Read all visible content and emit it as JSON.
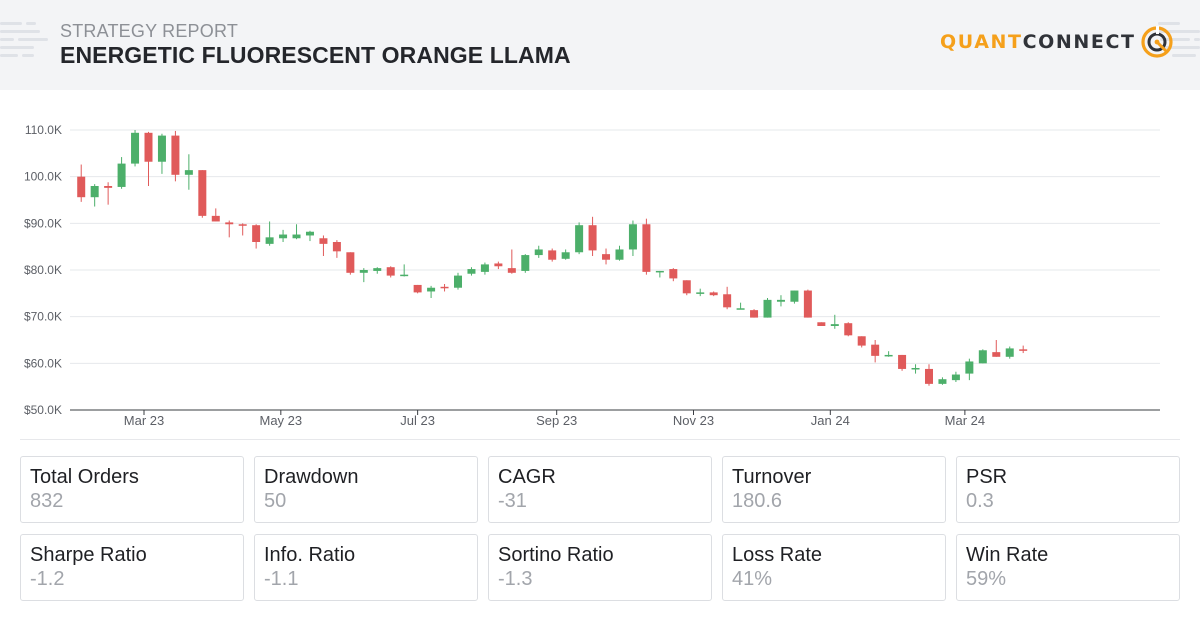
{
  "header": {
    "subtitle": "STRATEGY REPORT",
    "title": "ENERGETIC FLUORESCENT ORANGE LLAMA",
    "logo_quant": "QUANT",
    "logo_connect": "CONNECT",
    "logo_icon": "quantconnect-logo-icon"
  },
  "colors": {
    "up": "#4caf6a",
    "down": "#e05a5a",
    "accent": "#f5a01b",
    "grid": "#e6e8eb"
  },
  "chart_data": {
    "type": "candlestick",
    "title": "",
    "xlabel": "",
    "ylabel": "",
    "ylim": [
      50000,
      110000
    ],
    "y_ticks": [
      {
        "value": 50000,
        "label": "$50.0K"
      },
      {
        "value": 60000,
        "label": "$60.0K"
      },
      {
        "value": 70000,
        "label": "$70.0K"
      },
      {
        "value": 80000,
        "label": "$80.0K"
      },
      {
        "value": 90000,
        "label": "$90.0K"
      },
      {
        "value": 100000,
        "label": "100.0K"
      },
      {
        "value": 110000,
        "label": "110.0K"
      }
    ],
    "x_range": [
      "2023-01-27",
      "2024-05-27"
    ],
    "x_ticks": [
      {
        "date": "2023-03-01",
        "label": "Mar 23"
      },
      {
        "date": "2023-05-01",
        "label": "May 23"
      },
      {
        "date": "2023-07-01",
        "label": "Jul 23"
      },
      {
        "date": "2023-09-01",
        "label": "Sep 23"
      },
      {
        "date": "2023-11-01",
        "label": "Nov 23"
      },
      {
        "date": "2024-01-01",
        "label": "Jan 24"
      },
      {
        "date": "2024-03-01",
        "label": "Mar 24"
      }
    ],
    "grid": true,
    "legend": "none",
    "candles": [
      {
        "date": "2023-02-01",
        "open": 100000,
        "high": 102600,
        "low": 94600,
        "close": 95600
      },
      {
        "date": "2023-02-07",
        "open": 95600,
        "high": 98400,
        "low": 93600,
        "close": 98000
      },
      {
        "date": "2023-02-13",
        "open": 98000,
        "high": 98800,
        "low": 94000,
        "close": 97600
      },
      {
        "date": "2023-02-19",
        "open": 97800,
        "high": 104200,
        "low": 97400,
        "close": 102800
      },
      {
        "date": "2023-02-25",
        "open": 102800,
        "high": 110000,
        "low": 102200,
        "close": 109400
      },
      {
        "date": "2023-03-03",
        "open": 109400,
        "high": 109600,
        "low": 98000,
        "close": 103200
      },
      {
        "date": "2023-03-09",
        "open": 103200,
        "high": 109200,
        "low": 100600,
        "close": 108800
      },
      {
        "date": "2023-03-15",
        "open": 108800,
        "high": 109800,
        "low": 99000,
        "close": 100400
      },
      {
        "date": "2023-03-21",
        "open": 100400,
        "high": 104800,
        "low": 97200,
        "close": 101400
      },
      {
        "date": "2023-03-27",
        "open": 101400,
        "high": 101400,
        "low": 91200,
        "close": 91600
      },
      {
        "date": "2023-04-02",
        "open": 91600,
        "high": 93200,
        "low": 90400,
        "close": 90400
      },
      {
        "date": "2023-04-08",
        "open": 90200,
        "high": 90600,
        "low": 87000,
        "close": 89800
      },
      {
        "date": "2023-04-14",
        "open": 89800,
        "high": 90000,
        "low": 87400,
        "close": 89600
      },
      {
        "date": "2023-04-20",
        "open": 89600,
        "high": 89800,
        "low": 84600,
        "close": 86000
      },
      {
        "date": "2023-04-26",
        "open": 85600,
        "high": 90400,
        "low": 85200,
        "close": 87000
      },
      {
        "date": "2023-05-02",
        "open": 86800,
        "high": 88600,
        "low": 86000,
        "close": 87600
      },
      {
        "date": "2023-05-08",
        "open": 86800,
        "high": 89800,
        "low": 86600,
        "close": 87600
      },
      {
        "date": "2023-05-14",
        "open": 87400,
        "high": 88400,
        "low": 86200,
        "close": 88200
      },
      {
        "date": "2023-05-20",
        "open": 86800,
        "high": 87400,
        "low": 83000,
        "close": 85600
      },
      {
        "date": "2023-05-26",
        "open": 86000,
        "high": 86400,
        "low": 82600,
        "close": 84000
      },
      {
        "date": "2023-06-01",
        "open": 83800,
        "high": 83800,
        "low": 79000,
        "close": 79400
      },
      {
        "date": "2023-06-07",
        "open": 79400,
        "high": 80400,
        "low": 77400,
        "close": 80000
      },
      {
        "date": "2023-06-13",
        "open": 79800,
        "high": 80600,
        "low": 79200,
        "close": 80400
      },
      {
        "date": "2023-06-19",
        "open": 80600,
        "high": 80800,
        "low": 78400,
        "close": 78800
      },
      {
        "date": "2023-06-25",
        "open": 78800,
        "high": 81200,
        "low": 78600,
        "close": 79000
      },
      {
        "date": "2023-07-01",
        "open": 76800,
        "high": 76800,
        "low": 75000,
        "close": 75200
      },
      {
        "date": "2023-07-07",
        "open": 75400,
        "high": 76600,
        "low": 74000,
        "close": 76200
      },
      {
        "date": "2023-07-13",
        "open": 76400,
        "high": 77000,
        "low": 75400,
        "close": 76200
      },
      {
        "date": "2023-07-19",
        "open": 76200,
        "high": 79400,
        "low": 75800,
        "close": 78800
      },
      {
        "date": "2023-07-25",
        "open": 79200,
        "high": 80600,
        "low": 78800,
        "close": 80200
      },
      {
        "date": "2023-07-31",
        "open": 79600,
        "high": 81600,
        "low": 79000,
        "close": 81200
      },
      {
        "date": "2023-08-06",
        "open": 81400,
        "high": 81800,
        "low": 80200,
        "close": 80800
      },
      {
        "date": "2023-08-12",
        "open": 80400,
        "high": 84400,
        "low": 79200,
        "close": 79400
      },
      {
        "date": "2023-08-18",
        "open": 79800,
        "high": 83400,
        "low": 79400,
        "close": 83200
      },
      {
        "date": "2023-08-24",
        "open": 83200,
        "high": 85200,
        "low": 82600,
        "close": 84400
      },
      {
        "date": "2023-08-30",
        "open": 84200,
        "high": 84600,
        "low": 81800,
        "close": 82200
      },
      {
        "date": "2023-09-05",
        "open": 82400,
        "high": 84400,
        "low": 82200,
        "close": 83800
      },
      {
        "date": "2023-09-11",
        "open": 83800,
        "high": 90200,
        "low": 83400,
        "close": 89600
      },
      {
        "date": "2023-09-17",
        "open": 89600,
        "high": 91400,
        "low": 83000,
        "close": 84200
      },
      {
        "date": "2023-09-23",
        "open": 83400,
        "high": 84600,
        "low": 81200,
        "close": 82200
      },
      {
        "date": "2023-09-29",
        "open": 82200,
        "high": 85200,
        "low": 82000,
        "close": 84400
      },
      {
        "date": "2023-10-05",
        "open": 84400,
        "high": 90600,
        "low": 83000,
        "close": 89800
      },
      {
        "date": "2023-10-11",
        "open": 89800,
        "high": 91000,
        "low": 79000,
        "close": 79600
      },
      {
        "date": "2023-10-17",
        "open": 79600,
        "high": 79800,
        "low": 78400,
        "close": 79800
      },
      {
        "date": "2023-10-23",
        "open": 80200,
        "high": 80400,
        "low": 77600,
        "close": 78200
      },
      {
        "date": "2023-10-29",
        "open": 77800,
        "high": 77800,
        "low": 74600,
        "close": 75000
      },
      {
        "date": "2023-11-04",
        "open": 75200,
        "high": 76000,
        "low": 74400,
        "close": 75200
      },
      {
        "date": "2023-11-10",
        "open": 75200,
        "high": 75400,
        "low": 74400,
        "close": 74600
      },
      {
        "date": "2023-11-16",
        "open": 74800,
        "high": 76400,
        "low": 71600,
        "close": 72000
      },
      {
        "date": "2023-11-22",
        "open": 71600,
        "high": 73000,
        "low": 71600,
        "close": 71800
      },
      {
        "date": "2023-11-28",
        "open": 71400,
        "high": 71600,
        "low": 69800,
        "close": 69800
      },
      {
        "date": "2023-12-04",
        "open": 69800,
        "high": 74000,
        "low": 69800,
        "close": 73600
      },
      {
        "date": "2023-12-10",
        "open": 73200,
        "high": 74600,
        "low": 72200,
        "close": 73600
      },
      {
        "date": "2023-12-16",
        "open": 73200,
        "high": 75600,
        "low": 72800,
        "close": 75600
      },
      {
        "date": "2023-12-22",
        "open": 75600,
        "high": 75800,
        "low": 69800,
        "close": 69800
      },
      {
        "date": "2023-12-28",
        "open": 68800,
        "high": 68800,
        "low": 68000,
        "close": 68000
      },
      {
        "date": "2024-01-03",
        "open": 68000,
        "high": 70400,
        "low": 67400,
        "close": 68400
      },
      {
        "date": "2024-01-09",
        "open": 68600,
        "high": 68800,
        "low": 65800,
        "close": 66000
      },
      {
        "date": "2024-01-15",
        "open": 65800,
        "high": 65800,
        "low": 63400,
        "close": 63800
      },
      {
        "date": "2024-01-21",
        "open": 64000,
        "high": 65000,
        "low": 60200,
        "close": 61600
      },
      {
        "date": "2024-01-27",
        "open": 61800,
        "high": 62600,
        "low": 61400,
        "close": 61800
      },
      {
        "date": "2024-02-02",
        "open": 61800,
        "high": 61800,
        "low": 58400,
        "close": 58800
      },
      {
        "date": "2024-02-08",
        "open": 58800,
        "high": 59800,
        "low": 57800,
        "close": 59000
      },
      {
        "date": "2024-02-14",
        "open": 58800,
        "high": 59800,
        "low": 55200,
        "close": 55600
      },
      {
        "date": "2024-02-20",
        "open": 55600,
        "high": 57000,
        "low": 55400,
        "close": 56600
      },
      {
        "date": "2024-02-26",
        "open": 56400,
        "high": 58200,
        "low": 56000,
        "close": 57600
      },
      {
        "date": "2024-03-03",
        "open": 57800,
        "high": 61000,
        "low": 56400,
        "close": 60400
      },
      {
        "date": "2024-03-09",
        "open": 60000,
        "high": 63000,
        "low": 60000,
        "close": 62800
      },
      {
        "date": "2024-03-15",
        "open": 62400,
        "high": 65000,
        "low": 61400,
        "close": 61400
      },
      {
        "date": "2024-03-21",
        "open": 61400,
        "high": 63600,
        "low": 61000,
        "close": 63200
      },
      {
        "date": "2024-03-27",
        "open": 63000,
        "high": 63800,
        "low": 62200,
        "close": 62800
      }
    ]
  },
  "stats": [
    {
      "label": "Total Orders",
      "value": "832"
    },
    {
      "label": "Drawdown",
      "value": "50"
    },
    {
      "label": "CAGR",
      "value": "-31"
    },
    {
      "label": "Turnover",
      "value": "180.6"
    },
    {
      "label": "PSR",
      "value": "0.3"
    },
    {
      "label": "Sharpe Ratio",
      "value": "-1.2"
    },
    {
      "label": "Info. Ratio",
      "value": "-1.1"
    },
    {
      "label": "Sortino Ratio",
      "value": "-1.3"
    },
    {
      "label": "Loss Rate",
      "value": "41%"
    },
    {
      "label": "Win Rate",
      "value": "59%"
    }
  ]
}
